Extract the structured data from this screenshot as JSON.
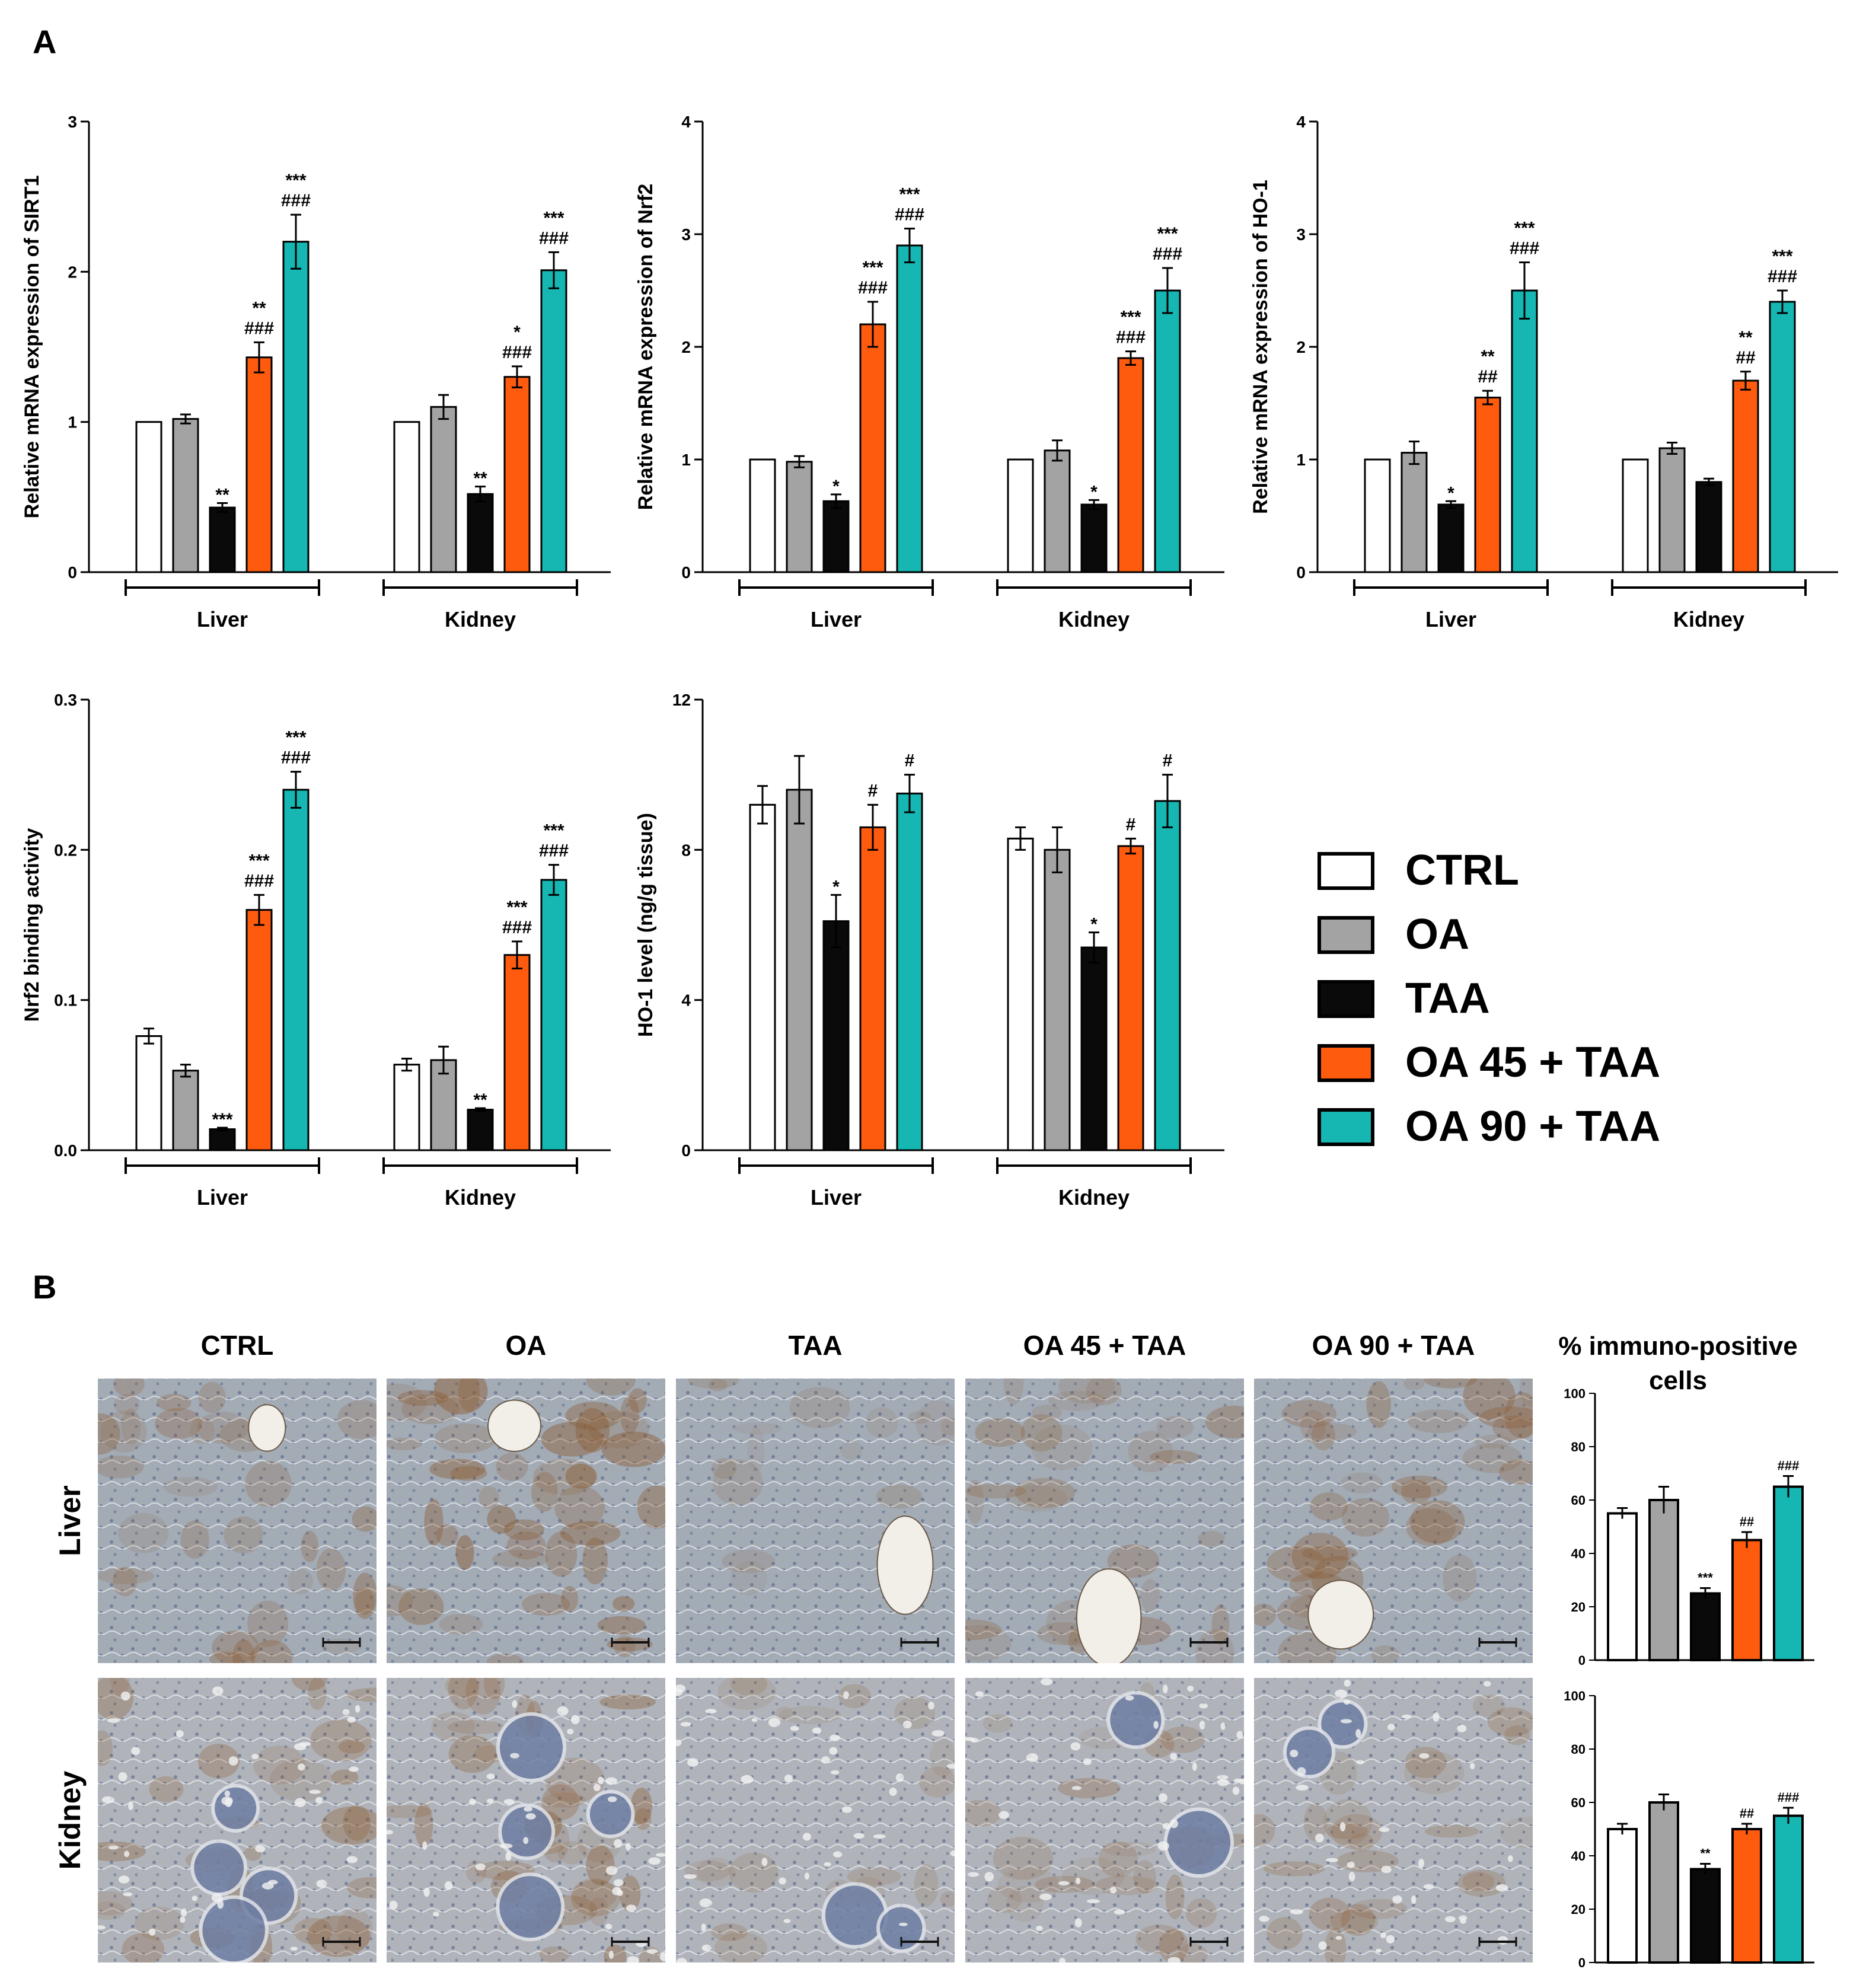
{
  "figure": {
    "panel_labels": [
      "A",
      "B"
    ]
  },
  "colors": {
    "CTRL": "#ffffff",
    "OA": "#a3a3a3",
    "TAA": "#0a0a0a",
    "OA 45 + TAA": "#fe5b0f",
    "OA 90 + TAA": "#16b7b3",
    "axis": "#000000",
    "tissue_liver_base": "#a3abb5",
    "tissue_kidney_base": "#b0b4ba",
    "stain_brown": "#8a5a30"
  },
  "legend": {
    "entries": [
      "CTRL",
      "OA",
      "TAA",
      "OA 45 + TAA",
      "OA 90 + TAA"
    ]
  },
  "chart_data": [
    {
      "type": "bar",
      "ylabel": "Relative mRNA expression of SIRT1",
      "ylim": [
        0,
        3
      ],
      "yticks": [
        "0",
        "1",
        "2",
        "3"
      ],
      "categories": [
        "Liver",
        "Kidney"
      ],
      "series_names": [
        "CTRL",
        "OA",
        "TAA",
        "OA 45 + TAA",
        "OA 90 + TAA"
      ],
      "values": [
        [
          1.0,
          1.02,
          0.43,
          1.43,
          2.2
        ],
        [
          1.0,
          1.1,
          0.52,
          1.3,
          2.01
        ]
      ],
      "errors": [
        [
          0,
          0.03,
          0.03,
          0.1,
          0.18
        ],
        [
          0,
          0.08,
          0.05,
          0.07,
          0.12
        ]
      ],
      "annotations": [
        [
          "",
          "",
          "**",
          "**\n###",
          "***\n###"
        ],
        [
          "",
          "",
          "**",
          "*\n###",
          "***\n###"
        ]
      ]
    },
    {
      "type": "bar",
      "ylabel": "Relative mRNA expression of Nrf2",
      "ylim": [
        0,
        4
      ],
      "yticks": [
        "0",
        "1",
        "2",
        "3",
        "4"
      ],
      "categories": [
        "Liver",
        "Kidney"
      ],
      "series_names": [
        "CTRL",
        "OA",
        "TAA",
        "OA 45 + TAA",
        "OA 90 + TAA"
      ],
      "values": [
        [
          1.0,
          0.98,
          0.63,
          2.2,
          2.9
        ],
        [
          1.0,
          1.08,
          0.6,
          1.9,
          2.5
        ]
      ],
      "errors": [
        [
          0,
          0.05,
          0.06,
          0.2,
          0.15
        ],
        [
          0,
          0.09,
          0.04,
          0.06,
          0.2
        ]
      ],
      "annotations": [
        [
          "",
          "",
          "*",
          "***\n###",
          "***\n###"
        ],
        [
          "",
          "",
          "*",
          "***\n###",
          "***\n###"
        ]
      ]
    },
    {
      "type": "bar",
      "ylabel": "Relative mRNA expression of HO-1",
      "ylim": [
        0,
        4
      ],
      "yticks": [
        "0",
        "1",
        "2",
        "3",
        "4"
      ],
      "categories": [
        "Liver",
        "Kidney"
      ],
      "series_names": [
        "CTRL",
        "OA",
        "TAA",
        "OA 45 + TAA",
        "OA 90 + TAA"
      ],
      "values": [
        [
          1.0,
          1.06,
          0.6,
          1.55,
          2.5
        ],
        [
          1.0,
          1.1,
          0.8,
          1.7,
          2.4
        ]
      ],
      "errors": [
        [
          0,
          0.1,
          0.03,
          0.06,
          0.25
        ],
        [
          0,
          0.05,
          0.03,
          0.08,
          0.1
        ]
      ],
      "annotations": [
        [
          "",
          "",
          "*",
          "**\n##",
          "***\n###"
        ],
        [
          "",
          "",
          "",
          "**\n##",
          "***\n###"
        ]
      ]
    },
    {
      "type": "bar",
      "ylabel": "Nrf2 binding activity",
      "ylim": [
        0,
        0.3
      ],
      "yticks": [
        "0.0",
        "0.1",
        "0.2",
        "0.3"
      ],
      "categories": [
        "Liver",
        "Kidney"
      ],
      "series_names": [
        "CTRL",
        "OA",
        "TAA",
        "OA 45 + TAA",
        "OA 90 + TAA"
      ],
      "values": [
        [
          0.076,
          0.053,
          0.014,
          0.16,
          0.24
        ],
        [
          0.057,
          0.06,
          0.027,
          0.13,
          0.18
        ]
      ],
      "errors": [
        [
          0.005,
          0.004,
          0.001,
          0.01,
          0.012
        ],
        [
          0.004,
          0.009,
          0.001,
          0.009,
          0.01
        ]
      ],
      "annotations": [
        [
          "",
          "",
          "***",
          "***\n###",
          "***\n###"
        ],
        [
          "",
          "",
          "**",
          "***\n###",
          "***\n###"
        ]
      ]
    },
    {
      "type": "bar",
      "ylabel": "HO-1 level (ng/g tissue)",
      "ylim": [
        0,
        12
      ],
      "yticks": [
        "0",
        "4",
        "8",
        "12"
      ],
      "categories": [
        "Liver",
        "Kidney"
      ],
      "series_names": [
        "CTRL",
        "OA",
        "TAA",
        "OA 45 + TAA",
        "OA 90 + TAA"
      ],
      "values": [
        [
          9.2,
          9.6,
          6.1,
          8.6,
          9.5
        ],
        [
          8.3,
          8.0,
          5.4,
          8.1,
          9.3
        ]
      ],
      "errors": [
        [
          0.5,
          0.9,
          0.7,
          0.6,
          0.5
        ],
        [
          0.3,
          0.6,
          0.4,
          0.2,
          0.7
        ]
      ],
      "annotations": [
        [
          "",
          "",
          "*",
          "#",
          "#"
        ],
        [
          "",
          "",
          "*",
          "#",
          "#"
        ]
      ]
    },
    {
      "type": "bar",
      "title": "% immuno-positive cells",
      "row": "Liver",
      "ylim": [
        0,
        100
      ],
      "yticks": [
        "0",
        "20",
        "40",
        "60",
        "80",
        "100"
      ],
      "categories": [
        "CTRL",
        "OA",
        "TAA",
        "OA 45 + TAA",
        "OA 90 + TAA"
      ],
      "values": [
        55,
        60,
        25,
        45,
        65
      ],
      "errors": [
        2,
        5,
        2,
        3,
        4
      ],
      "annotations": [
        "",
        "",
        "***",
        "##",
        "###"
      ]
    },
    {
      "type": "bar",
      "row": "Kidney",
      "ylim": [
        0,
        100
      ],
      "yticks": [
        "0",
        "20",
        "40",
        "60",
        "80",
        "100"
      ],
      "categories": [
        "CTRL",
        "OA",
        "TAA",
        "OA 45 + TAA",
        "OA 90 + TAA"
      ],
      "values": [
        50,
        60,
        35,
        50,
        55
      ],
      "errors": [
        2,
        3,
        2,
        2,
        3
      ],
      "annotations": [
        "",
        "",
        "**",
        "##",
        "###"
      ]
    }
  ],
  "micrographs": {
    "column_titles": [
      "CTRL",
      "OA",
      "TAA",
      "OA 45 + TAA",
      "OA 90 + TAA"
    ],
    "row_labels": [
      "Liver",
      "Kidney"
    ],
    "stain_intensity": [
      [
        0.55,
        0.85,
        0.12,
        0.45,
        0.6
      ],
      [
        0.55,
        0.65,
        0.2,
        0.35,
        0.35
      ]
    ]
  }
}
